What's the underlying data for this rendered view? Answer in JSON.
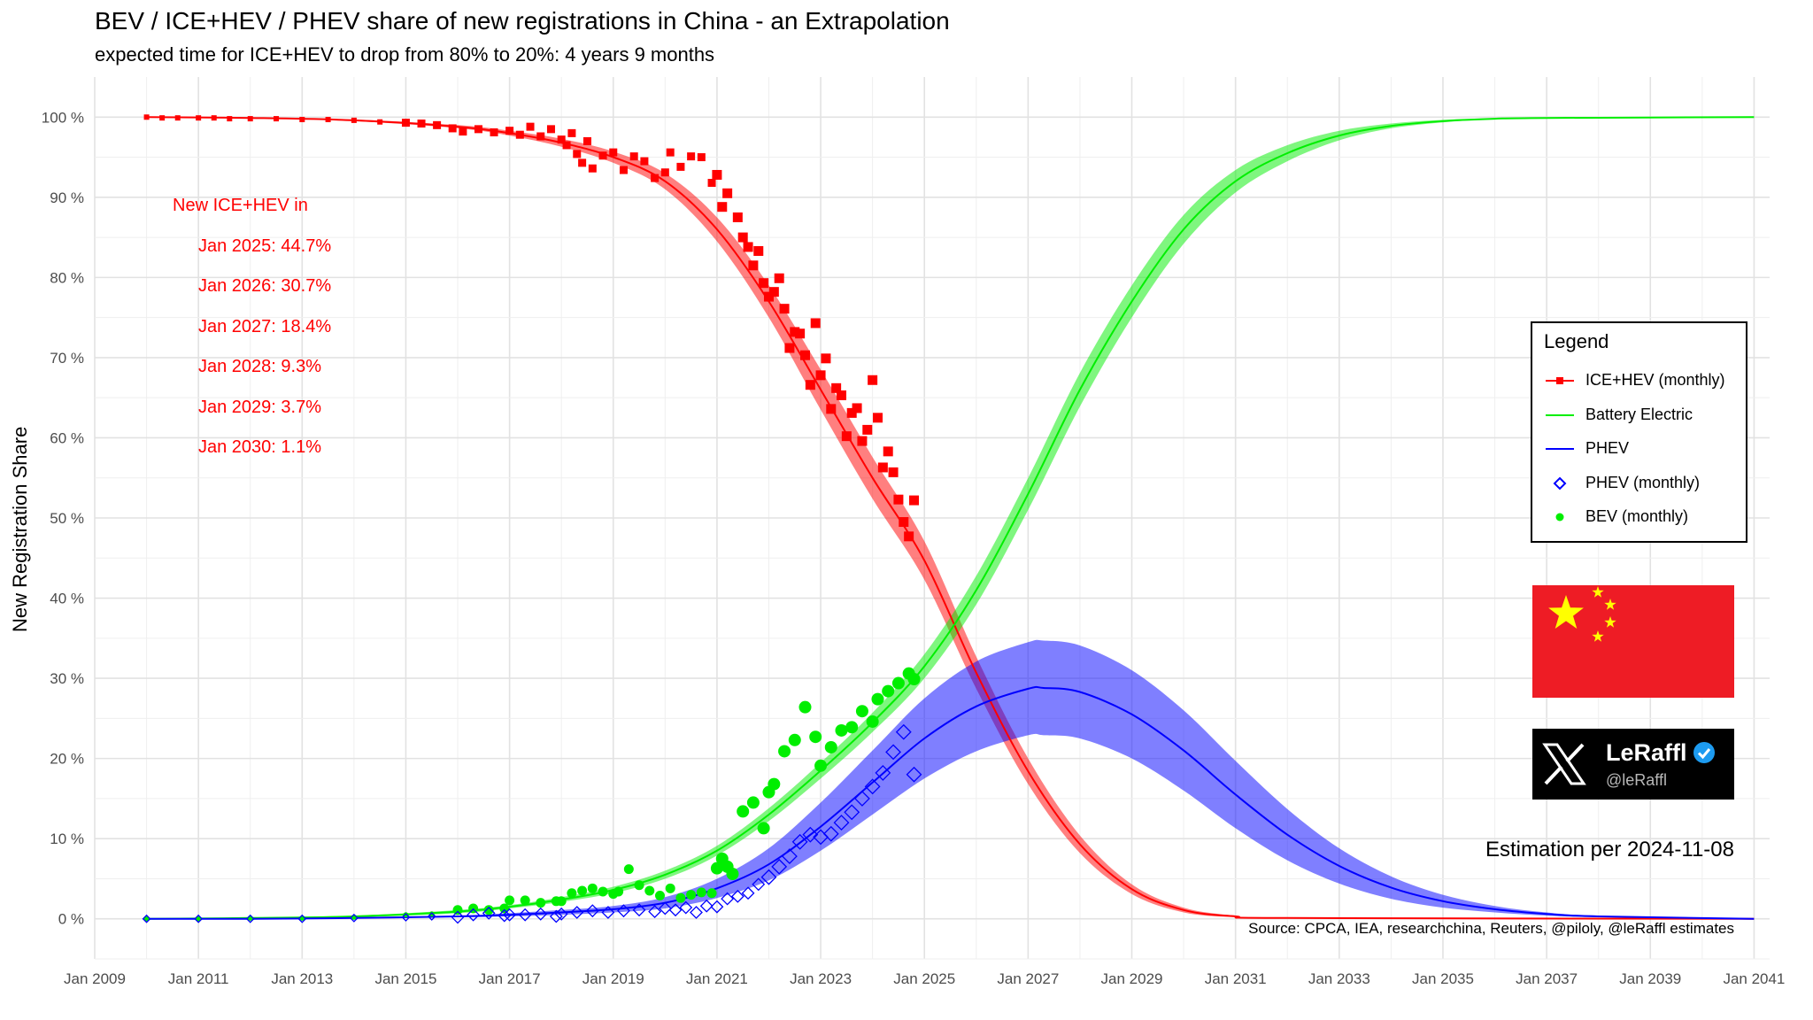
{
  "title": "BEV / ICE+HEV / PHEV share of new registrations in China - an Extrapolation",
  "subtitle": "expected time for ICE+HEV to drop from 80% to 20%: 4 years 9 months",
  "annotation": {
    "heading": "New ICE+HEV in",
    "lines": [
      "Jan 2025: 44.7%",
      "Jan 2026: 30.7%",
      "Jan 2027: 18.4%",
      "Jan 2028: 9.3%",
      "Jan 2029: 3.7%",
      "Jan 2030: 1.1%"
    ]
  },
  "legend": {
    "title": "Legend",
    "items": [
      {
        "label": "ICE+HEV (monthly)",
        "icon": "red-line-square-marker",
        "color": "#ff0000"
      },
      {
        "label": "Battery Electric",
        "icon": "green-line",
        "color": "#00ee00"
      },
      {
        "label": "PHEV",
        "icon": "blue-line",
        "color": "#0000ff"
      },
      {
        "label": "PHEV (monthly)",
        "icon": "blue-diamond",
        "color": "#0000ff"
      },
      {
        "label": "BEV (monthly)",
        "icon": "green-dot",
        "color": "#00ee00"
      }
    ]
  },
  "flag": {
    "icon": "china-flag",
    "red": "#ee1c25",
    "yellow": "#ffff00"
  },
  "badge": {
    "name": "LeRaffl",
    "handle": "@leRaffl",
    "icon": "x-logo",
    "verified_icon": "verified-badge-icon"
  },
  "estimation": "Estimation per 2024-11-08",
  "source": "Source: CPCA, IEA, researchchina, Reuters, @piloly, @leRaffl estimates",
  "chart_data": {
    "type": "line",
    "ylabel": "New Registration Share",
    "xlabel": "",
    "xlim": [
      2009,
      2041.3
    ],
    "ylim": [
      -5,
      105
    ],
    "grid": true,
    "x_tick_labels": [
      "Jan 2009",
      "Jan 2011",
      "Jan 2013",
      "Jan 2015",
      "Jan 2017",
      "Jan 2019",
      "Jan 2021",
      "Jan 2023",
      "Jan 2025",
      "Jan 2027",
      "Jan 2029",
      "Jan 2031",
      "Jan 2033",
      "Jan 2035",
      "Jan 2037",
      "Jan 2039",
      "Jan 2041"
    ],
    "x_tick_values": [
      2009,
      2011,
      2013,
      2015,
      2017,
      2019,
      2021,
      2023,
      2025,
      2027,
      2029,
      2031,
      2033,
      2035,
      2037,
      2039,
      2041
    ],
    "y_tick_labels": [
      "0 %",
      "10 %",
      "20 %",
      "30 %",
      "40 %",
      "50 %",
      "60 %",
      "70 %",
      "80 %",
      "90 %",
      "100 %"
    ],
    "y_tick_values": [
      0,
      10,
      20,
      30,
      40,
      50,
      60,
      70,
      80,
      90,
      100
    ],
    "colors": {
      "ice": "#ff0000",
      "bev": "#00ee00",
      "phev": "#0000ff"
    },
    "curves": [
      {
        "name": "ICE+HEV",
        "color": "#ff0000",
        "x": [
          2010,
          2012,
          2014,
          2016,
          2017,
          2018,
          2019,
          2020,
          2021,
          2022,
          2023,
          2024,
          2025,
          2026,
          2027,
          2028,
          2029,
          2030,
          2031,
          2032,
          2041
        ],
        "y": [
          100,
          99.9,
          99.6,
          98.8,
          98.0,
          96.8,
          95.0,
          92.0,
          86.0,
          77.0,
          66.0,
          55.0,
          44.7,
          30.7,
          18.4,
          9.3,
          3.7,
          1.1,
          0.3,
          0.1,
          0
        ],
        "band_halfwidth": [
          0,
          0,
          0.1,
          0.2,
          0.3,
          0.5,
          0.7,
          1.0,
          1.5,
          2.0,
          2.5,
          2.6,
          2.4,
          2.0,
          1.6,
          1.1,
          0.6,
          0.3,
          0.1,
          0,
          0
        ]
      },
      {
        "name": "Battery Electric",
        "color": "#00ee00",
        "x": [
          2010,
          2012,
          2014,
          2016,
          2017,
          2018,
          2019,
          2020,
          2021,
          2022,
          2023,
          2024,
          2025,
          2026,
          2027,
          2028,
          2029,
          2030,
          2031,
          2032,
          2033,
          2034,
          2035,
          2036,
          2037,
          2041
        ],
        "y": [
          0,
          0.1,
          0.3,
          0.9,
          1.5,
          2.4,
          3.6,
          5.5,
          8.5,
          13.0,
          18.5,
          24.5,
          31.5,
          41.0,
          53.0,
          66.0,
          77.0,
          86.0,
          92.0,
          95.5,
          97.7,
          98.9,
          99.5,
          99.8,
          99.9,
          100
        ],
        "band_halfwidth": [
          0,
          0,
          0.1,
          0.2,
          0.2,
          0.3,
          0.4,
          0.5,
          0.6,
          0.8,
          1.0,
          1.2,
          1.5,
          1.8,
          2.0,
          2.1,
          2.0,
          1.8,
          1.4,
          1.0,
          0.6,
          0.3,
          0.15,
          0.05,
          0,
          0
        ]
      },
      {
        "name": "PHEV",
        "color": "#0000ff",
        "x": [
          2010,
          2012,
          2014,
          2016,
          2017,
          2018,
          2019,
          2020,
          2021,
          2022,
          2023,
          2024,
          2025,
          2026,
          2027,
          2027.3,
          2028,
          2029,
          2030,
          2031,
          2032,
          2033,
          2034,
          2035,
          2036,
          2037,
          2038,
          2041
        ],
        "y": [
          0,
          0,
          0.1,
          0.3,
          0.5,
          0.8,
          1.2,
          2.0,
          3.8,
          6.8,
          11.5,
          17.0,
          22.5,
          26.5,
          28.7,
          28.8,
          28.3,
          25.5,
          21.0,
          15.5,
          10.5,
          6.6,
          3.9,
          2.2,
          1.2,
          0.6,
          0.3,
          0
        ],
        "band_halfwidth": [
          0,
          0,
          0,
          0.1,
          0.2,
          0.3,
          0.4,
          0.7,
          1.2,
          2.0,
          3.0,
          4.0,
          5.0,
          5.6,
          5.8,
          5.9,
          5.8,
          5.5,
          5.0,
          4.2,
          3.2,
          2.2,
          1.4,
          0.8,
          0.4,
          0.2,
          0.1,
          0
        ]
      }
    ],
    "monthly_series": [
      {
        "name": "ICE+HEV (monthly)",
        "marker": "square",
        "color": "#ff0000",
        "x": [
          2010.0,
          2010.3,
          2010.6,
          2011.0,
          2011.3,
          2011.6,
          2012.0,
          2012.5,
          2013.0,
          2013.5,
          2014.0,
          2014.5,
          2015.0,
          2015.3,
          2015.6,
          2015.9,
          2016.1,
          2016.4,
          2016.7,
          2017.0,
          2017.2,
          2017.4,
          2017.6,
          2017.8,
          2018.0,
          2018.1,
          2018.2,
          2018.3,
          2018.4,
          2018.5,
          2018.6,
          2018.8,
          2019.0,
          2019.2,
          2019.4,
          2019.6,
          2019.8,
          2020.0,
          2020.1,
          2020.3,
          2020.5,
          2020.7,
          2020.9,
          2021.0,
          2021.1,
          2021.2,
          2021.4,
          2021.5,
          2021.6,
          2021.7,
          2021.8,
          2021.9,
          2022.0,
          2022.1,
          2022.2,
          2022.3,
          2022.4,
          2022.5,
          2022.6,
          2022.7,
          2022.8,
          2022.9,
          2023.0,
          2023.1,
          2023.2,
          2023.3,
          2023.4,
          2023.5,
          2023.6,
          2023.7,
          2023.8,
          2023.9,
          2024.0,
          2024.1,
          2024.2,
          2024.3,
          2024.4,
          2024.5,
          2024.6,
          2024.7,
          2024.8
        ],
        "y": [
          100,
          99.9,
          99.9,
          99.9,
          99.9,
          99.8,
          99.8,
          99.8,
          99.7,
          99.7,
          99.6,
          99.4,
          99.3,
          99.2,
          99.0,
          98.6,
          98.2,
          98.5,
          98.1,
          98.3,
          97.8,
          98.8,
          97.6,
          98.5,
          97.2,
          96.5,
          98.0,
          95.4,
          94.3,
          97.0,
          93.6,
          95.2,
          95.6,
          93.4,
          95.1,
          94.5,
          92.4,
          93.1,
          95.6,
          93.8,
          95.1,
          95.0,
          91.8,
          92.8,
          88.8,
          90.5,
          87.5,
          85.0,
          83.8,
          81.5,
          83.3,
          79.3,
          77.6,
          78.2,
          79.9,
          76.1,
          71.2,
          73.2,
          73.0,
          70.3,
          66.6,
          74.3,
          67.8,
          69.9,
          63.6,
          66.2,
          65.3,
          60.2,
          63.1,
          63.7,
          59.6,
          61.0,
          67.2,
          62.5,
          56.3,
          58.3,
          55.7,
          52.3,
          49.5,
          47.7,
          52.2
        ]
      },
      {
        "name": "BEV (monthly)",
        "marker": "circle",
        "color": "#00ee00",
        "x": [
          2010.0,
          2011.0,
          2012.0,
          2013.0,
          2014.0,
          2015.0,
          2015.5,
          2016.0,
          2016.3,
          2016.6,
          2016.9,
          2017.0,
          2017.3,
          2017.6,
          2017.9,
          2018.0,
          2018.2,
          2018.4,
          2018.6,
          2018.8,
          2019.0,
          2019.1,
          2019.3,
          2019.5,
          2019.7,
          2019.9,
          2020.1,
          2020.3,
          2020.5,
          2020.7,
          2020.9,
          2021.0,
          2021.1,
          2021.2,
          2021.3,
          2021.5,
          2021.7,
          2021.9,
          2022.0,
          2022.1,
          2022.3,
          2022.5,
          2022.7,
          2022.9,
          2023.0,
          2023.2,
          2023.4,
          2023.6,
          2023.8,
          2024.0,
          2024.1,
          2024.3,
          2024.5,
          2024.7,
          2024.8
        ],
        "y": [
          0,
          0,
          0.1,
          0.1,
          0.2,
          0.5,
          0.6,
          1.1,
          1.3,
          1.1,
          1.3,
          2.3,
          2.3,
          2.0,
          2.2,
          2.2,
          3.2,
          3.5,
          3.8,
          3.4,
          3.1,
          3.4,
          6.2,
          4.2,
          3.5,
          2.9,
          3.8,
          2.6,
          3.0,
          3.3,
          3.2,
          6.3,
          7.5,
          6.5,
          5.6,
          13.4,
          14.5,
          11.3,
          15.8,
          16.8,
          20.9,
          22.3,
          26.4,
          22.7,
          19.1,
          21.4,
          23.5,
          23.9,
          25.9,
          24.6,
          27.4,
          28.4,
          29.4,
          30.6,
          29.9
        ]
      },
      {
        "name": "PHEV (monthly)",
        "marker": "diamond",
        "color": "#0000ff",
        "x": [
          2010.0,
          2011.0,
          2012.0,
          2013.0,
          2014.0,
          2015.0,
          2015.5,
          2016.0,
          2016.3,
          2016.6,
          2016.9,
          2017.0,
          2017.3,
          2017.6,
          2017.9,
          2018.0,
          2018.3,
          2018.6,
          2018.9,
          2019.2,
          2019.5,
          2019.8,
          2020.0,
          2020.2,
          2020.4,
          2020.6,
          2020.8,
          2021.0,
          2021.2,
          2021.4,
          2021.6,
          2021.8,
          2022.0,
          2022.2,
          2022.4,
          2022.6,
          2022.8,
          2023.0,
          2023.2,
          2023.4,
          2023.6,
          2023.8,
          2024.0,
          2024.2,
          2024.4,
          2024.6,
          2024.8
        ],
        "y": [
          0,
          0,
          0,
          0,
          0.1,
          0.2,
          0.3,
          0.2,
          0.5,
          0.7,
          0.4,
          0.5,
          0.5,
          0.6,
          0.3,
          0.6,
          0.8,
          1.0,
          0.8,
          1.0,
          1.1,
          0.9,
          1.3,
          1.1,
          1.4,
          0.8,
          1.6,
          1.5,
          2.5,
          2.8,
          3.2,
          4.3,
          5.2,
          6.5,
          7.8,
          9.6,
          10.5,
          10.2,
          10.6,
          12.0,
          13.3,
          15.0,
          16.5,
          18.2,
          20.8,
          23.3,
          18.0
        ]
      }
    ]
  }
}
